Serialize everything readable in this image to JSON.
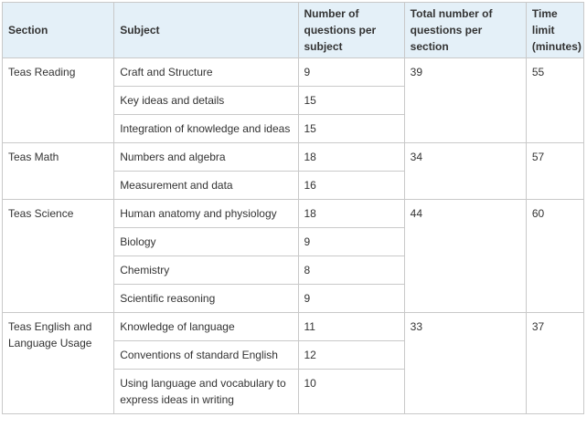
{
  "headers": [
    "Section",
    "Subject",
    "Number of questions per subject",
    "Total number of questions per section",
    "Time limit (minutes)"
  ],
  "sections": [
    {
      "name": "Teas Reading",
      "total": "39",
      "time": "55",
      "subjects": [
        {
          "subject": "Craft and Structure",
          "count": "9"
        },
        {
          "subject": "Key ideas and details",
          "count": "15"
        },
        {
          "subject": "Integration of knowledge and ideas",
          "count": "15"
        }
      ]
    },
    {
      "name": "Teas Math",
      "total": "34",
      "time": "57",
      "subjects": [
        {
          "subject": "Numbers and algebra",
          "count": "18"
        },
        {
          "subject": "Measurement and data",
          "count": "16"
        }
      ]
    },
    {
      "name": "Teas Science",
      "total": "44",
      "time": "60",
      "subjects": [
        {
          "subject": "Human anatomy and physiology",
          "count": "18"
        },
        {
          "subject": "Biology",
          "count": "9"
        },
        {
          "subject": "Chemistry",
          "count": "8"
        },
        {
          "subject": "Scientific reasoning",
          "count": "9"
        }
      ]
    },
    {
      "name": "Teas English and Language Usage",
      "total": "33",
      "time": "37",
      "subjects": [
        {
          "subject": "Knowledge of language",
          "count": "11"
        },
        {
          "subject": "Conventions of standard English",
          "count": "12"
        },
        {
          "subject": "Using language and vocabulary to express ideas in writing",
          "count": "10"
        }
      ]
    }
  ]
}
